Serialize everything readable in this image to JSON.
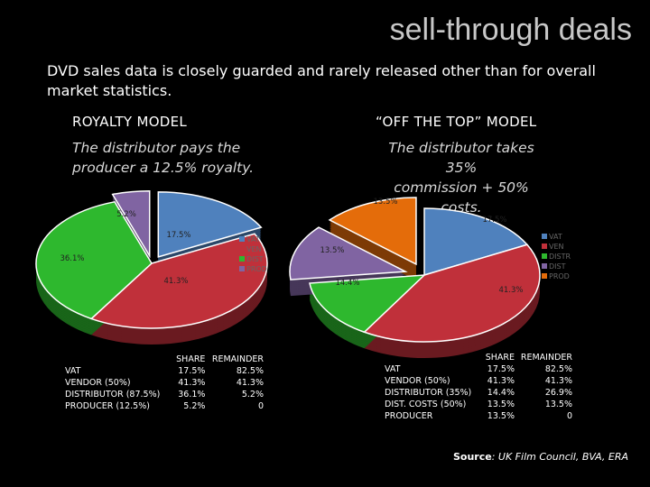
{
  "title": "sell-through deals",
  "intro": "DVD sales data is closely guarded and rarely released other than for overall market statistics.",
  "left": {
    "heading": "ROYALTY MODEL",
    "subtitle_line1": "The distributor pays the",
    "subtitle_line2": "producer a 12.5% royalty.",
    "table": {
      "headers": [
        "",
        "SHARE",
        "REMAINDER"
      ],
      "rows": [
        {
          "label": "VAT",
          "share": "17.5%",
          "remainder": "82.5%"
        },
        {
          "label": "VENDOR (50%)",
          "share": "41.3%",
          "remainder": "41.3%"
        },
        {
          "label": "DISTRIBUTOR (87.5%)",
          "share": "36.1%",
          "remainder": "5.2%"
        },
        {
          "label": "PRODUCER (12.5%)",
          "share": "5.2%",
          "remainder": "0"
        }
      ]
    }
  },
  "right": {
    "heading": "“OFF THE TOP” MODEL",
    "subtitle_line1": "The distributor takes 35%",
    "subtitle_line2": "commission + 50% costs.",
    "table": {
      "headers": [
        "",
        "SHARE",
        "REMAINDER"
      ],
      "rows": [
        {
          "label": "VAT",
          "share": "17.5%",
          "remainder": "82.5%"
        },
        {
          "label": "VENDOR (50%)",
          "share": "41.3%",
          "remainder": "41.3%"
        },
        {
          "label": "DISTRIBUTOR (35%)",
          "share": "14.4%",
          "remainder": "26.9%"
        },
        {
          "label": "DIST. COSTS (50%)",
          "share": "13.5%",
          "remainder": "13.5%"
        },
        {
          "label": "PRODUCER",
          "share": "13.5%",
          "remainder": "0"
        }
      ]
    }
  },
  "source_label": "Source",
  "source_text": ": UK Film Council, BVA, ERA",
  "chart_data": [
    {
      "type": "pie",
      "categories": [
        "VAT",
        "VENDOR",
        "DISTRIBUTOR",
        "PRODUCER"
      ],
      "values": [
        17.5,
        41.3,
        36.1,
        5.2
      ],
      "labels": [
        "17.5%",
        "41.3%",
        "36.1%",
        "5.2%"
      ],
      "legend": [
        "VAT",
        "VENDOR",
        "DISTRIBUTOR",
        "PRODUCER"
      ],
      "legend_visible": [
        "VAT",
        "VEN",
        "DIST",
        "PROD"
      ],
      "colors": [
        "#4f81bd",
        "#c0303a",
        "#2eb82e",
        "#8064a2"
      ],
      "exploded": [
        0,
        3
      ]
    },
    {
      "type": "pie",
      "categories": [
        "VAT",
        "VENDOR",
        "DISTRIBUTOR",
        "DIST. COSTS",
        "PRODUCER"
      ],
      "values": [
        17.5,
        41.3,
        14.4,
        13.5,
        13.5
      ],
      "labels": [
        "17.5%",
        "41.3%",
        "14.4%",
        "13.5%",
        "13.5%"
      ],
      "legend": [
        "VAT",
        "VENDOR",
        "DISTRIBUTOR",
        "DIST. COSTS",
        "PRODUCER"
      ],
      "legend_visible": [
        "VAT",
        "VEN",
        "DISTR",
        "DIST",
        "PROD"
      ],
      "colors": [
        "#4f81bd",
        "#c0303a",
        "#2eb82e",
        "#8064a2",
        "#e46c0a"
      ],
      "exploded": [
        3,
        4
      ]
    }
  ]
}
